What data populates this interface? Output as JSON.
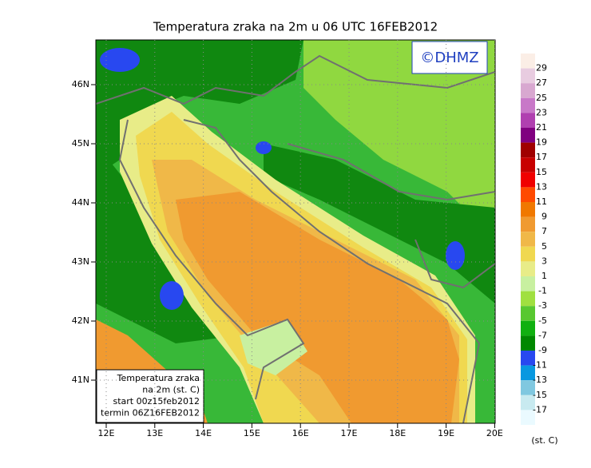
{
  "header": {
    "title": "Temperatura zraka na 2m u 06 UTC 16FEB2012"
  },
  "logo": "©DHMZ",
  "axes": {
    "latitude": [
      "46N",
      "45N",
      "44N",
      "43N",
      "42N",
      "41N"
    ],
    "longitude": [
      "12E",
      "13E",
      "14E",
      "15E",
      "16E",
      "17E",
      "18E",
      "19E",
      "20E"
    ]
  },
  "info_box": {
    "lines": [
      "Temperatura zraka",
      "na 2m (st. C)",
      "start 00z15feb2012",
      "termin 06Z16FEB2012"
    ]
  },
  "colorbar": {
    "labels": [
      "29",
      "27",
      "25",
      "23",
      "21",
      "19",
      "17",
      "15",
      "13",
      "11",
      "9",
      "7",
      "5",
      "3",
      "1",
      "-1",
      "-3",
      "-5",
      "-7",
      "-9",
      "-11",
      "-13",
      "-15",
      "-17"
    ],
    "colors": [
      "#fbeee6",
      "#e8cce0",
      "#d8a8d0",
      "#c878c8",
      "#b040b0",
      "#800080",
      "#a00000",
      "#c80000",
      "#f00000",
      "#ff4a00",
      "#f07800",
      "#f09a30",
      "#f0b848",
      "#f0d850",
      "#e8ec88",
      "#c8f0a0",
      "#a0e040",
      "#58c830",
      "#10b010",
      "#008800",
      "#2848f0",
      "#0898e0",
      "#80c8e0",
      "#c8eaf0",
      "#eafaff"
    ],
    "unit": "(st. C)"
  }
}
